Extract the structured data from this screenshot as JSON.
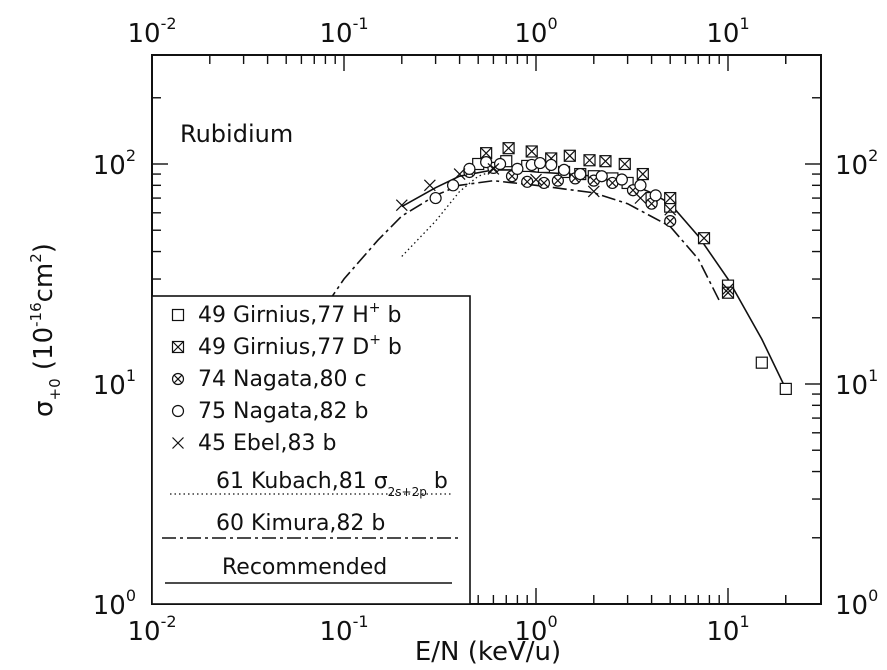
{
  "chart_data": {
    "type": "scatter",
    "title": "",
    "annotation": "Rubidium",
    "xlabel": "E/N (keV/u)",
    "ylabel": {
      "main": "σ",
      "sub": "+0",
      "unit_open": " (10",
      "unit_sup": "-16",
      "unit_close": "cm",
      "unit_sup2": "2",
      "unit_end": ")"
    },
    "xscale": "log",
    "yscale": "log",
    "xlim": [
      0.01,
      20
    ],
    "ylim": [
      1,
      200
    ],
    "xticks_major": [
      {
        "base": "10",
        "exp": "-2"
      },
      {
        "base": "10",
        "exp": "-1"
      },
      {
        "base": "10",
        "exp": "0"
      },
      {
        "base": "10",
        "exp": "1"
      }
    ],
    "yticks_major": [
      {
        "base": "10",
        "exp": "0"
      },
      {
        "base": "10",
        "exp": "1"
      },
      {
        "base": "10",
        "exp": "2"
      }
    ],
    "legend_placement": "lower-left",
    "series": [
      {
        "name": "49 Girnius,77 H",
        "name_sup": "+",
        "name_end": " b",
        "marker": "square",
        "points": [
          [
            0.5,
            100
          ],
          [
            0.7,
            103
          ],
          [
            0.9,
            98
          ],
          [
            1.1,
            97
          ],
          [
            1.4,
            92
          ],
          [
            1.7,
            90
          ],
          [
            2.0,
            88
          ],
          [
            2.5,
            86
          ],
          [
            3.0,
            82
          ],
          [
            4.0,
            70
          ],
          [
            5.0,
            64
          ],
          [
            10.0,
            28
          ],
          [
            15.0,
            12.5
          ],
          [
            20.0,
            9.5
          ]
        ]
      },
      {
        "name": "49 Girnius,77 D",
        "name_sup": "+",
        "name_end": " b",
        "marker": "square-x",
        "points": [
          [
            0.55,
            112
          ],
          [
            0.72,
            118
          ],
          [
            0.95,
            114
          ],
          [
            1.2,
            106
          ],
          [
            1.5,
            109
          ],
          [
            1.9,
            104
          ],
          [
            2.3,
            103
          ],
          [
            2.9,
            100
          ],
          [
            3.6,
            90
          ],
          [
            5.0,
            70
          ],
          [
            7.5,
            46
          ],
          [
            10.0,
            26
          ]
        ]
      },
      {
        "name": "74 Nagata,80 c",
        "name_sup": "",
        "name_end": "",
        "marker": "circle-x",
        "points": [
          [
            0.45,
            92
          ],
          [
            0.6,
            96
          ],
          [
            0.75,
            88
          ],
          [
            0.9,
            83
          ],
          [
            1.1,
            82
          ],
          [
            1.3,
            84
          ],
          [
            1.6,
            86
          ],
          [
            2.0,
            84
          ],
          [
            2.5,
            82
          ],
          [
            3.2,
            76
          ],
          [
            4.0,
            66
          ],
          [
            5.0,
            55
          ]
        ]
      },
      {
        "name": "75 Nagata,82 b",
        "name_sup": "",
        "name_end": "",
        "marker": "circle",
        "points": [
          [
            0.3,
            70
          ],
          [
            0.37,
            80
          ],
          [
            0.45,
            95
          ],
          [
            0.55,
            102
          ],
          [
            0.65,
            100
          ],
          [
            0.8,
            95
          ],
          [
            0.95,
            99
          ],
          [
            1.05,
            101
          ],
          [
            1.2,
            99
          ],
          [
            1.4,
            94
          ],
          [
            1.7,
            90
          ],
          [
            2.2,
            88
          ],
          [
            2.8,
            85
          ],
          [
            3.5,
            80
          ],
          [
            4.2,
            72
          ]
        ]
      },
      {
        "name": "45 Ebel,83 b",
        "name_sup": "",
        "name_end": "",
        "marker": "x",
        "points": [
          [
            0.2,
            65
          ],
          [
            0.28,
            80
          ],
          [
            0.4,
            90
          ],
          [
            0.6,
            95
          ],
          [
            1.0,
            85
          ],
          [
            2.0,
            75
          ],
          [
            3.5,
            70
          ],
          [
            5.0,
            62
          ],
          [
            10.0,
            27
          ]
        ]
      }
    ],
    "curves": [
      {
        "name": "61 Kubach,81 σ",
        "name_sub": "2s+2p",
        "name_end": " b",
        "style": "dotted",
        "points": [
          [
            0.2,
            38
          ],
          [
            0.3,
            55
          ],
          [
            0.4,
            75
          ],
          [
            0.5,
            88
          ],
          [
            0.6,
            93
          ]
        ]
      },
      {
        "name": "60 Kimura,82 b",
        "name_sub": "",
        "name_end": "",
        "style": "dash-dot",
        "points": [
          [
            0.05,
            12
          ],
          [
            0.07,
            19
          ],
          [
            0.1,
            30
          ],
          [
            0.15,
            45
          ],
          [
            0.2,
            58
          ],
          [
            0.3,
            72
          ],
          [
            0.4,
            80
          ],
          [
            0.6,
            84
          ],
          [
            1.0,
            80
          ],
          [
            2.0,
            74
          ],
          [
            3.0,
            66
          ],
          [
            5.0,
            52
          ],
          [
            7.0,
            37
          ],
          [
            9.0,
            24
          ]
        ]
      },
      {
        "name": "Recommended",
        "name_sub": "",
        "name_end": "",
        "style": "solid",
        "points": [
          [
            0.2,
            64
          ],
          [
            0.3,
            78
          ],
          [
            0.4,
            88
          ],
          [
            0.6,
            94
          ],
          [
            0.8,
            94
          ],
          [
            1.0,
            92
          ],
          [
            1.5,
            90
          ],
          [
            2.0,
            88
          ],
          [
            3.0,
            82
          ],
          [
            4.0,
            74
          ],
          [
            5.0,
            66
          ],
          [
            7.0,
            47
          ],
          [
            10.0,
            30
          ],
          [
            15.0,
            16
          ],
          [
            20.0,
            9.5
          ]
        ]
      }
    ]
  }
}
